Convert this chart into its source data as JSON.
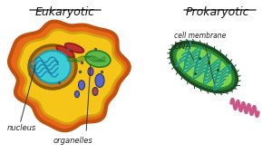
{
  "bg_color": "#ffffff",
  "eukaryotic_label": "Eukaryotic",
  "prokaryotic_label": "Prokaryotic",
  "nucleus_label": "nucleus",
  "organelles_label": "organelles",
  "cell_membrane_label": "cell membrane",
  "dna_label": "DNA",
  "euk_outer_color": "#e8681a",
  "euk_inner_color": "#f5c518",
  "euk_nucleus_ring_color": "#c47a1e",
  "euk_nucleus_inner_color": "#3dcdd6",
  "pro_outer_color": "#2a7a3a",
  "pro_inner_color": "#7dd44a",
  "pro_dna_color": "#1a9990",
  "annotation_color": "#222222",
  "title_color": "#111111"
}
